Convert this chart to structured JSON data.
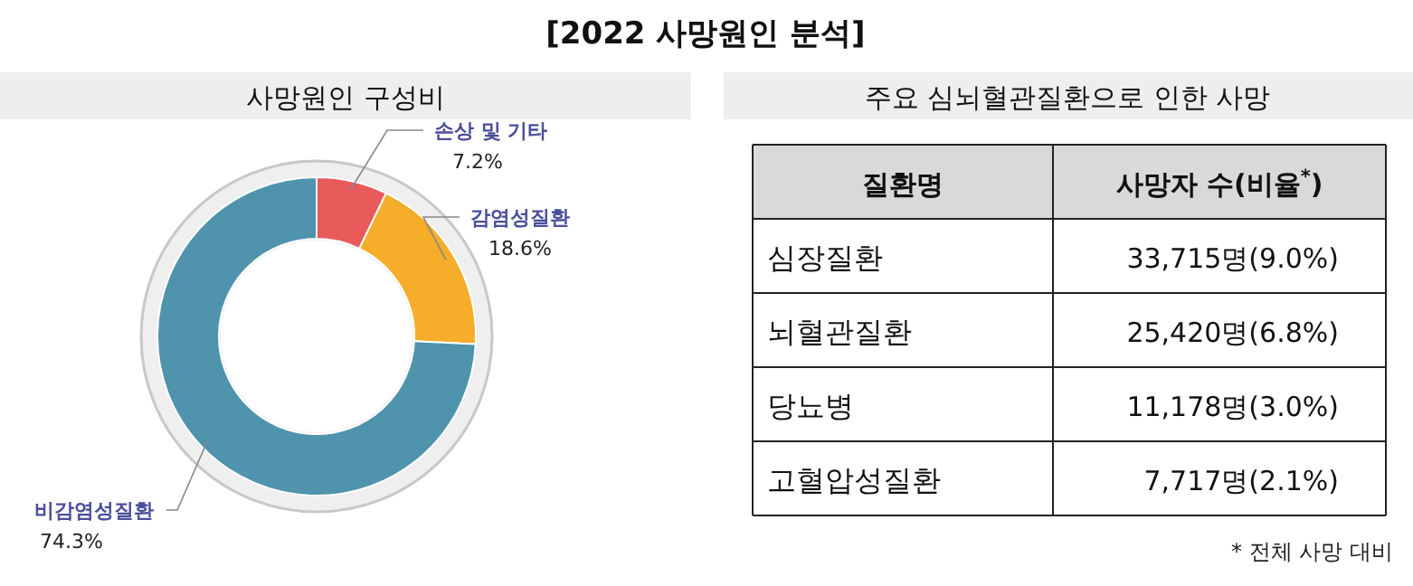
{
  "chart_data": [
    {
      "type": "donut",
      "title": "사망원인 구성비",
      "annotations": [
        "[2022 사망원인 분석]"
      ],
      "categories": [
        "손상 및 기타",
        "감염성질환",
        "비감염성질환"
      ],
      "values": [
        7.2,
        18.6,
        74.3
      ],
      "colors": [
        "#e95a5a",
        "#f5ad2a",
        "#4f93ad"
      ],
      "value_labels": [
        "7.2%",
        "18.6%",
        "74.3%"
      ]
    },
    {
      "type": "other",
      "title": "주요 심뇌혈관질환으로 인한 사망",
      "annotations": [
        "질환명",
        "사망자 수(비율$^{*}$)",
        "심장질환",
        "33,715명(9.0%)",
        "뇌혈관질환",
        "25,420명(6.8%)",
        "당뇨병",
        "11,178명(3.0%)",
        "고혈압성질환",
        "7,717명(2.1%)",
        "* 전체 사망 대비"
      ]
    }
  ]
}
